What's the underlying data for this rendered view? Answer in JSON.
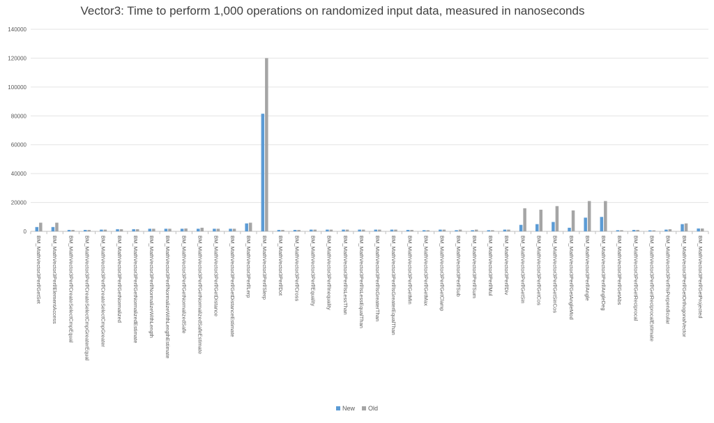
{
  "chart_data": {
    "type": "bar",
    "title": "Vector3: Time to perform 1,000 operations on randomized input data, measured in nanoseconds",
    "xlabel": "",
    "ylabel": "",
    "ylim": [
      0,
      140000
    ],
    "yticks": [
      "0",
      "20000",
      "40000",
      "60000",
      "80000",
      "100000",
      "120000",
      "140000"
    ],
    "grid": true,
    "legend_position": "bottom",
    "colors": {
      "New": "#5b9bd5",
      "Old": "#a5a5a5"
    },
    "categories": [
      "BM_MathVector3Perf/GetSet",
      "BM_MathVector3Perf/ElementAccess",
      "BM_MathVector3Perf/CreateSelectCmpEqual",
      "BM_MathVector3Perf/CreateSelectCmpGreaterEqual",
      "BM_MathVector3Perf/CreateSelectCmpGreater",
      "BM_MathVector3Perf/GetNormalized",
      "BM_MathVector3Perf/GetNormalizedEstimate",
      "BM_MathVector3Perf/NormalizeWithLength",
      "BM_MathVector3Perf/NormalizeWithLengthEstimate",
      "BM_MathVector3Perf/GetNormalizedSafe",
      "BM_MathVector3Perf/GetNormalizedSafeEstimate",
      "BM_MathVector3Perf/GetDistance",
      "BM_MathVector3Perf/GetDistanceEstimate",
      "BM_MathVector3Perf/Lerp",
      "BM_MathVector3Perf/Slerp",
      "BM_MathVector3Perf/Dot",
      "BM_MathVector3Perf/Cross",
      "BM_MathVector3Perf/Equality",
      "BM_MathVector3Perf/Inequality",
      "BM_MathVector3Perf/IsLessThan",
      "BM_MathVector3Perf/IsLessEqualThan",
      "BM_MathVector3Perf/IsGreaterThan",
      "BM_MathVector3Perf/IsGreaterEqualThan",
      "BM_MathVector3Perf/GetMin",
      "BM_MathVector3Perf/GetMax",
      "BM_MathVector3Perf/GetClamp",
      "BM_MathVector3Perf/Sub",
      "BM_MathVector3Perf/Sum",
      "BM_MathVector3Perf/Mul",
      "BM_MathVector3Perf/Div",
      "BM_MathVector3Perf/GetSin",
      "BM_MathVector3Perf/GetCos",
      "BM_MathVector3Perf/GetSinCos",
      "BM_MathVector3Perf/GetAngleMod",
      "BM_MathVector3Perf/Angle",
      "BM_MathVector3Perf/AngleDeg",
      "BM_MathVector3Perf/GetAbs",
      "BM_MathVector3Perf/GetReciprocal",
      "BM_MathVector3Perf/GetReciprocalEstimate",
      "BM_MathVector3Perf/IsPerpendicular",
      "BM_MathVector3Perf/GetOrthogonalVector",
      "BM_MathVector3Perf/GetProjected"
    ],
    "series": [
      {
        "name": "New",
        "values": [
          3000,
          3000,
          1000,
          1000,
          1200,
          1500,
          1500,
          1800,
          1800,
          1800,
          1800,
          1800,
          1800,
          5500,
          81500,
          1000,
          1000,
          1200,
          1200,
          1200,
          1200,
          1200,
          1200,
          1000,
          800,
          1200,
          800,
          800,
          800,
          1200,
          4500,
          5000,
          6500,
          2500,
          9500,
          10000,
          800,
          1000,
          700,
          1200,
          5000,
          2000
        ]
      },
      {
        "name": "Old",
        "values": [
          6000,
          6000,
          1000,
          1000,
          1200,
          1500,
          1500,
          1800,
          1800,
          2000,
          2500,
          1800,
          1800,
          6000,
          120000,
          1000,
          1000,
          1200,
          1200,
          1200,
          1200,
          1200,
          1200,
          1000,
          800,
          1200,
          1200,
          1200,
          800,
          1200,
          16000,
          15000,
          17500,
          14500,
          21000,
          21000,
          800,
          1000,
          700,
          1500,
          5500,
          2000
        ]
      }
    ]
  }
}
